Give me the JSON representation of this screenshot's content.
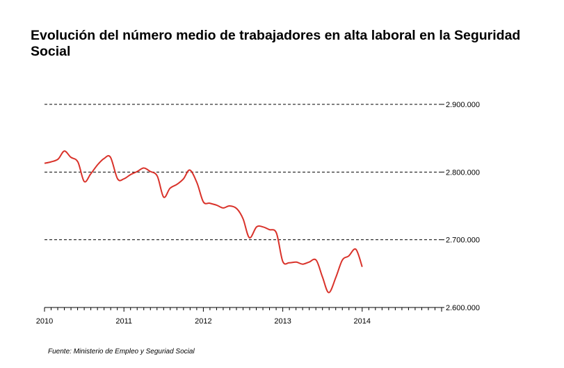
{
  "chart_data": {
    "type": "line",
    "title": "Evolución del número medio de trabajadores en alta laboral en la Seguridad Social",
    "xlabel": "",
    "ylabel": "",
    "xlim": [
      2010,
      2015
    ],
    "ylim": [
      2600000,
      2900000
    ],
    "x_tick_labels": [
      "2010",
      "2011",
      "2012",
      "2013",
      "2014"
    ],
    "y_tick_labels": [
      "2.900.000",
      "2.800.000",
      "2.700.000",
      "2.600.000"
    ],
    "y_tick_values": [
      2900000,
      2800000,
      2700000,
      2600000
    ],
    "grid": "horizontal dashed",
    "y_axis_position": "right",
    "line_color": "#d9322a",
    "series": [
      {
        "x": [
          2010.0,
          2010.08,
          2010.17,
          2010.25,
          2010.33,
          2010.42,
          2010.5,
          2010.58,
          2010.67,
          2010.75,
          2010.83,
          2010.92,
          2011.0,
          2011.08,
          2011.17,
          2011.25,
          2011.33,
          2011.42,
          2011.5,
          2011.58,
          2011.67,
          2011.75,
          2011.83,
          2011.92,
          2012.0,
          2012.08,
          2012.17,
          2012.25,
          2012.33,
          2012.42,
          2012.5,
          2012.58,
          2012.67,
          2012.75,
          2012.83,
          2012.92,
          2013.0,
          2013.08,
          2013.17,
          2013.25,
          2013.33,
          2013.42,
          2013.5,
          2013.58,
          2013.67,
          2013.75,
          2013.83,
          2013.92,
          2014.0
        ],
        "y": [
          2813000,
          2815000,
          2819000,
          2831000,
          2822000,
          2815000,
          2786000,
          2797000,
          2811000,
          2820000,
          2822000,
          2790000,
          2790000,
          2796000,
          2801000,
          2806000,
          2801000,
          2794000,
          2763000,
          2776000,
          2782000,
          2790000,
          2803000,
          2784000,
          2756000,
          2754000,
          2751000,
          2747000,
          2750000,
          2746000,
          2731000,
          2703000,
          2719000,
          2719000,
          2715000,
          2710000,
          2668000,
          2666000,
          2667000,
          2664000,
          2667000,
          2670000,
          2645000,
          2622000,
          2645000,
          2670000,
          2676000,
          2686000,
          2660000
        ]
      }
    ],
    "source": "Fuente: Ministerio de Empleo y Seguriad Social"
  }
}
